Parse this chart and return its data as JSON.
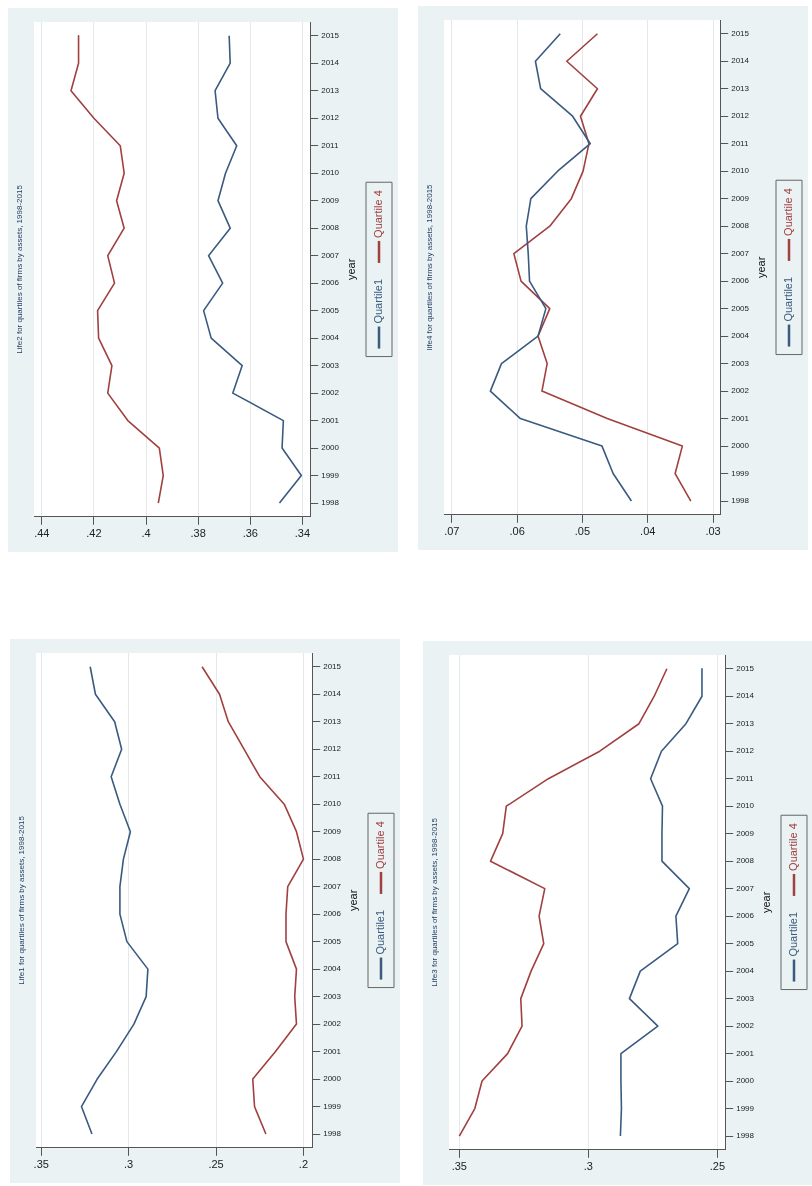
{
  "chart_data": [
    {
      "type": "line",
      "orientation": "horizontal",
      "title": "Life1 for quartiles of firms by assets, 1998-2015",
      "ylabel": "year",
      "categories": [
        "2015",
        "2014",
        "2013",
        "2012",
        "2011",
        "2010",
        "2009",
        "2008",
        "2007",
        "2006",
        "2005",
        "2004",
        "2003",
        "2002",
        "2001",
        "2000",
        "1999",
        "1998"
      ],
      "xlim": [
        0.353,
        0.195
      ],
      "xticks": [
        {
          "value": 0.35,
          "label": ".35"
        },
        {
          "value": 0.3,
          "label": ".3"
        },
        {
          "value": 0.25,
          "label": ".25"
        },
        {
          "value": 0.2,
          "label": ".2"
        }
      ],
      "grid": "x",
      "legend": "right",
      "marker": "none",
      "series": [
        {
          "name": "Quartile1",
          "color": "#3a5a80",
          "values": [
            0.322,
            0.319,
            0.308,
            0.304,
            0.31,
            0.305,
            0.299,
            0.303,
            0.305,
            0.305,
            0.301,
            0.289,
            0.29,
            0.297,
            0.307,
            0.318,
            0.327,
            0.321
          ]
        },
        {
          "name": "Quartile 4",
          "color": "#a0403f",
          "values": [
            0.258,
            0.248,
            0.243,
            0.234,
            0.225,
            0.211,
            0.204,
            0.2,
            0.209,
            0.21,
            0.21,
            0.204,
            0.205,
            0.204,
            0.216,
            0.229,
            0.228,
            0.2215
          ]
        }
      ]
    },
    {
      "type": "line",
      "orientation": "horizontal",
      "title": "Life2 for quartiles of firms by assets, 1998-2015",
      "ylabel": "year",
      "categories": [
        "2015",
        "2014",
        "2013",
        "2012",
        "2011",
        "2010",
        "2009",
        "2008",
        "2007",
        "2006",
        "2005",
        "2004",
        "2003",
        "2002",
        "2001",
        "2000",
        "1999",
        "1998"
      ],
      "xlim": [
        0.443,
        0.337
      ],
      "xticks": [
        {
          "value": 0.44,
          "label": ".44"
        },
        {
          "value": 0.42,
          "label": ".42"
        },
        {
          "value": 0.4,
          "label": ".4"
        },
        {
          "value": 0.38,
          "label": ".38"
        },
        {
          "value": 0.36,
          "label": ".36"
        },
        {
          "value": 0.34,
          "label": ".34"
        }
      ],
      "grid": "x",
      "legend": "right",
      "marker": "none",
      "series": [
        {
          "name": "Quartile1",
          "color": "#3a5a80",
          "values": [
            0.3681,
            0.3677,
            0.3735,
            0.3724,
            0.3652,
            0.3695,
            0.3724,
            0.3677,
            0.376,
            0.3706,
            0.3779,
            0.375,
            0.3631,
            0.3667,
            0.3473,
            0.3478,
            0.3404,
            0.3488
          ]
        },
        {
          "name": "Quartile 4",
          "color": "#a0403f",
          "values": [
            0.4259,
            0.4259,
            0.4288,
            0.42,
            0.4099,
            0.4084,
            0.4113,
            0.4084,
            0.4147,
            0.4121,
            0.4186,
            0.4182,
            0.4131,
            0.4147,
            0.407,
            0.3949,
            0.3934,
            0.3953
          ]
        }
      ]
    },
    {
      "type": "line",
      "orientation": "horizontal",
      "title": "Life3 for quartiles of firms by assets, 1998-2015",
      "ylabel": "year",
      "categories": [
        "2015",
        "2014",
        "2013",
        "2012",
        "2011",
        "2010",
        "2009",
        "2008",
        "2007",
        "2006",
        "2005",
        "2004",
        "2003",
        "2002",
        "2001",
        "2000",
        "1999",
        "1998"
      ],
      "xlim": [
        0.354,
        0.247
      ],
      "xticks": [
        {
          "value": 0.35,
          "label": ".35"
        },
        {
          "value": 0.3,
          "label": ".3"
        },
        {
          "value": 0.25,
          "label": ".25"
        }
      ],
      "grid": "x",
      "legend": "right",
      "marker": "none",
      "series": [
        {
          "name": "Quartile1",
          "color": "#3a5a80",
          "values": [
            0.256,
            0.256,
            0.2622,
            0.2717,
            0.2759,
            0.2713,
            0.2715,
            0.2715,
            0.2609,
            0.2661,
            0.2654,
            0.2799,
            0.2841,
            0.2731,
            0.2874,
            0.2874,
            0.2872,
            0.2876
          ]
        },
        {
          "name": "Quartile 4",
          "color": "#a0403f",
          "values": [
            0.2696,
            0.2745,
            0.2804,
            0.2956,
            0.3155,
            0.3318,
            0.3332,
            0.3379,
            0.3169,
            0.3191,
            0.3173,
            0.3222,
            0.3262,
            0.3257,
            0.3313,
            0.3412,
            0.344,
            0.35
          ]
        }
      ]
    },
    {
      "type": "line",
      "orientation": "horizontal",
      "title": "life4 for quartiles of firms by assets, 1998-2015",
      "ylabel": "year",
      "categories": [
        "2015",
        "2014",
        "2013",
        "2012",
        "2011",
        "2010",
        "2009",
        "2008",
        "2007",
        "2006",
        "2005",
        "2004",
        "2003",
        "2002",
        "2001",
        "2000",
        "1999",
        "1998"
      ],
      "xlim": [
        0.0712,
        0.0289
      ],
      "xticks": [
        {
          "value": 0.07,
          "label": ".07"
        },
        {
          "value": 0.06,
          "label": ".06"
        },
        {
          "value": 0.05,
          "label": ".05"
        },
        {
          "value": 0.04,
          "label": ".04"
        },
        {
          "value": 0.03,
          "label": ".03"
        }
      ],
      "grid": "x",
      "legend": "right",
      "marker": "none",
      "series": [
        {
          "name": "Quartile1",
          "color": "#3a5a80",
          "values": [
            0.0534,
            0.0572,
            0.0564,
            0.0515,
            0.0488,
            0.0538,
            0.0579,
            0.0586,
            0.0583,
            0.0581,
            0.0556,
            0.0568,
            0.0624,
            0.0641,
            0.0595,
            0.047,
            0.0453,
            0.0425
          ]
        },
        {
          "name": "Quartile 4",
          "color": "#a0403f",
          "values": [
            0.0477,
            0.0524,
            0.0477,
            0.0503,
            0.049,
            0.0499,
            0.0517,
            0.055,
            0.0605,
            0.0594,
            0.055,
            0.0568,
            0.0554,
            0.0562,
            0.0462,
            0.0347,
            0.0358,
            0.0334
          ]
        }
      ]
    }
  ]
}
